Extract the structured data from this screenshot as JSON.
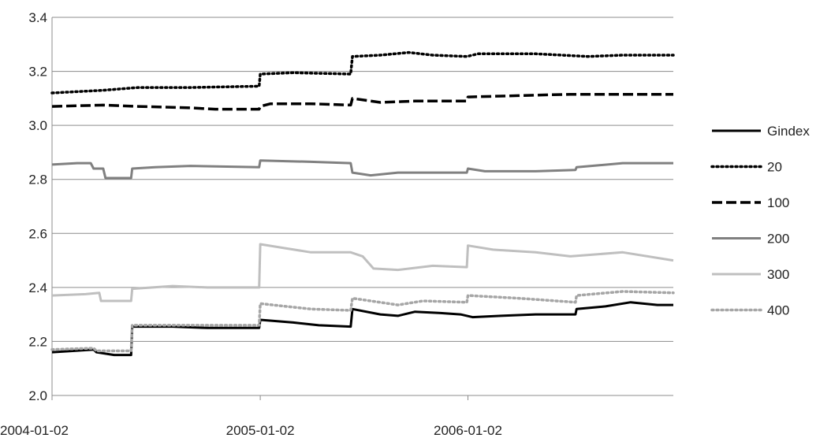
{
  "chart_data": {
    "type": "line",
    "title": "",
    "xlabel": "",
    "ylabel": "",
    "ylim": [
      2.0,
      3.4
    ],
    "yticks": [
      2.0,
      2.2,
      2.4,
      2.6,
      2.8,
      3.0,
      3.2,
      3.4
    ],
    "ytick_labels": [
      "2.0",
      "2.2",
      "2.4",
      "2.6",
      "2.8",
      "3.0",
      "3.2",
      "3.4"
    ],
    "xlim": [
      "2004-01-02",
      "2006-12-29"
    ],
    "xticks": [
      "2004-01-02",
      "2005-01-02",
      "2006-01-02"
    ],
    "grid": "horizontal",
    "legend_position": "right",
    "series": [
      {
        "name": "Gindex",
        "style": "solid",
        "color": "#000000",
        "points": [
          [
            "2004-01-02",
            2.16
          ],
          [
            "2004-02-10",
            2.165
          ],
          [
            "2004-03-15",
            2.17
          ],
          [
            "2004-03-20",
            2.16
          ],
          [
            "2004-04-20",
            2.15
          ],
          [
            "2004-05-20",
            2.15
          ],
          [
            "2004-05-22",
            2.255
          ],
          [
            "2004-08-01",
            2.255
          ],
          [
            "2004-10-01",
            2.25
          ],
          [
            "2004-12-31",
            2.25
          ],
          [
            "2005-01-02",
            2.28
          ],
          [
            "2005-03-01",
            2.27
          ],
          [
            "2005-04-15",
            2.26
          ],
          [
            "2005-06-10",
            2.255
          ],
          [
            "2005-06-13",
            2.32
          ],
          [
            "2005-08-01",
            2.3
          ],
          [
            "2005-09-01",
            2.295
          ],
          [
            "2005-10-01",
            2.31
          ],
          [
            "2005-11-15",
            2.305
          ],
          [
            "2005-12-20",
            2.3
          ],
          [
            "2006-01-10",
            2.29
          ],
          [
            "2006-03-01",
            2.295
          ],
          [
            "2006-05-01",
            2.3
          ],
          [
            "2006-07-10",
            2.3
          ],
          [
            "2006-07-12",
            2.32
          ],
          [
            "2006-09-01",
            2.33
          ],
          [
            "2006-10-15",
            2.345
          ],
          [
            "2006-12-01",
            2.335
          ],
          [
            "2006-12-29",
            2.335
          ]
        ]
      },
      {
        "name": "20",
        "style": "dotted",
        "color": "#000000",
        "points": [
          [
            "2004-01-02",
            3.12
          ],
          [
            "2004-04-01",
            3.13
          ],
          [
            "2004-06-01",
            3.14
          ],
          [
            "2004-09-01",
            3.14
          ],
          [
            "2004-12-31",
            3.145
          ],
          [
            "2005-01-02",
            3.19
          ],
          [
            "2005-03-01",
            3.195
          ],
          [
            "2005-06-10",
            3.19
          ],
          [
            "2005-06-13",
            3.255
          ],
          [
            "2005-08-01",
            3.26
          ],
          [
            "2005-09-20",
            3.27
          ],
          [
            "2005-11-01",
            3.26
          ],
          [
            "2005-12-31",
            3.255
          ],
          [
            "2006-01-20",
            3.265
          ],
          [
            "2006-05-01",
            3.265
          ],
          [
            "2006-08-01",
            3.255
          ],
          [
            "2006-10-01",
            3.26
          ],
          [
            "2006-12-29",
            3.26
          ]
        ]
      },
      {
        "name": "100",
        "style": "dashed",
        "color": "#000000",
        "points": [
          [
            "2004-01-02",
            3.07
          ],
          [
            "2004-04-01",
            3.075
          ],
          [
            "2004-06-01",
            3.07
          ],
          [
            "2004-09-01",
            3.065
          ],
          [
            "2004-10-15",
            3.06
          ],
          [
            "2004-12-31",
            3.06
          ],
          [
            "2005-01-02",
            3.07
          ],
          [
            "2005-01-20",
            3.08
          ],
          [
            "2005-04-01",
            3.08
          ],
          [
            "2005-06-10",
            3.075
          ],
          [
            "2005-06-13",
            3.1
          ],
          [
            "2005-08-01",
            3.085
          ],
          [
            "2005-10-01",
            3.09
          ],
          [
            "2005-12-31",
            3.09
          ],
          [
            "2006-01-02",
            3.105
          ],
          [
            "2006-04-01",
            3.11
          ],
          [
            "2006-07-01",
            3.115
          ],
          [
            "2006-10-01",
            3.115
          ],
          [
            "2006-12-29",
            3.115
          ]
        ]
      },
      {
        "name": "200",
        "style": "solid",
        "color": "#808080",
        "points": [
          [
            "2004-01-02",
            2.855
          ],
          [
            "2004-02-15",
            2.86
          ],
          [
            "2004-03-10",
            2.86
          ],
          [
            "2004-03-15",
            2.84
          ],
          [
            "2004-04-01",
            2.84
          ],
          [
            "2004-04-05",
            2.805
          ],
          [
            "2004-05-20",
            2.805
          ],
          [
            "2004-05-22",
            2.84
          ],
          [
            "2004-07-01",
            2.845
          ],
          [
            "2004-09-01",
            2.85
          ],
          [
            "2004-12-31",
            2.845
          ],
          [
            "2005-01-02",
            2.87
          ],
          [
            "2005-04-01",
            2.865
          ],
          [
            "2005-06-10",
            2.86
          ],
          [
            "2005-06-13",
            2.825
          ],
          [
            "2005-07-15",
            2.815
          ],
          [
            "2005-09-01",
            2.825
          ],
          [
            "2005-12-31",
            2.825
          ],
          [
            "2006-01-02",
            2.84
          ],
          [
            "2006-02-01",
            2.83
          ],
          [
            "2006-05-01",
            2.83
          ],
          [
            "2006-07-10",
            2.835
          ],
          [
            "2006-07-12",
            2.845
          ],
          [
            "2006-10-01",
            2.86
          ],
          [
            "2006-12-29",
            2.86
          ]
        ]
      },
      {
        "name": "300",
        "style": "solid",
        "color": "#bfbfbf",
        "points": [
          [
            "2004-01-02",
            2.37
          ],
          [
            "2004-03-01",
            2.375
          ],
          [
            "2004-03-25",
            2.38
          ],
          [
            "2004-03-28",
            2.35
          ],
          [
            "2004-05-20",
            2.35
          ],
          [
            "2004-05-22",
            2.395
          ],
          [
            "2004-08-01",
            2.405
          ],
          [
            "2004-10-01",
            2.4
          ],
          [
            "2004-12-31",
            2.4
          ],
          [
            "2005-01-02",
            2.56
          ],
          [
            "2005-02-15",
            2.545
          ],
          [
            "2005-04-01",
            2.53
          ],
          [
            "2005-06-10",
            2.53
          ],
          [
            "2005-07-01",
            2.515
          ],
          [
            "2005-07-20",
            2.47
          ],
          [
            "2005-09-01",
            2.465
          ],
          [
            "2005-11-01",
            2.48
          ],
          [
            "2005-12-31",
            2.475
          ],
          [
            "2006-01-02",
            2.555
          ],
          [
            "2006-02-15",
            2.54
          ],
          [
            "2006-05-01",
            2.53
          ],
          [
            "2006-07-01",
            2.515
          ],
          [
            "2006-10-01",
            2.53
          ],
          [
            "2006-12-29",
            2.5
          ]
        ]
      },
      {
        "name": "400",
        "style": "dotted",
        "color": "#a6a6a6",
        "points": [
          [
            "2004-01-02",
            2.17
          ],
          [
            "2004-03-15",
            2.175
          ],
          [
            "2004-03-20",
            2.165
          ],
          [
            "2004-05-20",
            2.165
          ],
          [
            "2004-05-22",
            2.26
          ],
          [
            "2004-09-01",
            2.26
          ],
          [
            "2004-12-31",
            2.26
          ],
          [
            "2005-01-02",
            2.34
          ],
          [
            "2005-04-01",
            2.32
          ],
          [
            "2005-06-10",
            2.315
          ],
          [
            "2005-06-13",
            2.36
          ],
          [
            "2005-09-01",
            2.335
          ],
          [
            "2005-10-15",
            2.35
          ],
          [
            "2005-12-31",
            2.345
          ],
          [
            "2006-01-02",
            2.37
          ],
          [
            "2006-04-01",
            2.36
          ],
          [
            "2006-07-10",
            2.345
          ],
          [
            "2006-07-12",
            2.37
          ],
          [
            "2006-10-01",
            2.385
          ],
          [
            "2006-12-29",
            2.38
          ]
        ]
      }
    ]
  }
}
